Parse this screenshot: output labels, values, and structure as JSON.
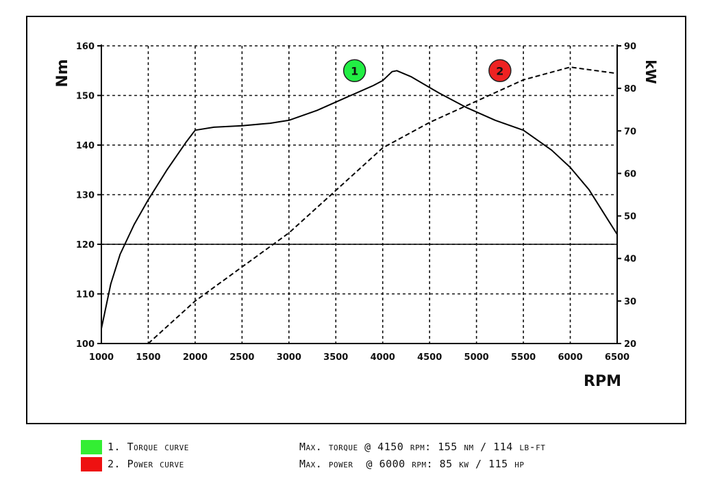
{
  "chart_data": {
    "type": "line",
    "xlabel": "RPM",
    "ylabel_left": "Nm",
    "ylabel_right": "kW",
    "xlim": [
      1000,
      6500
    ],
    "ylim_left": [
      100,
      160
    ],
    "ylim_right": [
      20,
      90
    ],
    "x_ticks": [
      "1000",
      "1500",
      "2000",
      "2500",
      "3000",
      "3500",
      "4000",
      "4500",
      "5000",
      "5500",
      "6000",
      "6500"
    ],
    "y_left_ticks": [
      "100",
      "110",
      "120",
      "130",
      "140",
      "150",
      "160"
    ],
    "y_right_ticks": [
      "20",
      "30",
      "40",
      "50",
      "60",
      "70",
      "80",
      "90"
    ],
    "grid": true,
    "series": [
      {
        "name": "1. Torque curve",
        "marker_label": "1",
        "axis": "left",
        "color": "#000000",
        "style": "solid",
        "x": [
          1000,
          1100,
          1200,
          1350,
          1500,
          1700,
          1900,
          2000,
          2200,
          2500,
          2800,
          3000,
          3300,
          3600,
          3900,
          4000,
          4100,
          4150,
          4300,
          4600,
          4900,
          5200,
          5500,
          5800,
          6000,
          6200,
          6400,
          6500
        ],
        "values": [
          103,
          112,
          118,
          124,
          129,
          135,
          140.5,
          143,
          143.6,
          143.9,
          144.4,
          145,
          147,
          149.5,
          152,
          153,
          154.8,
          155,
          153.8,
          150.5,
          147.5,
          145,
          143,
          139,
          135.5,
          131,
          125,
          122
        ]
      },
      {
        "name": "2. Power curve",
        "marker_label": "2",
        "axis": "right",
        "color": "#000000",
        "style": "dashed",
        "x": [
          1500,
          2000,
          2500,
          3000,
          3500,
          4000,
          4500,
          5000,
          5500,
          6000,
          6500
        ],
        "values": [
          20,
          30,
          38,
          46,
          56,
          66,
          72,
          77,
          82,
          85,
          83.5
        ]
      }
    ],
    "badges": [
      {
        "label": "1",
        "color": "#22ee44",
        "x": 3700,
        "y_left": 155
      },
      {
        "label": "2",
        "color": "#ee2222",
        "x": 5250,
        "y_left": 155
      }
    ],
    "reference_line_left": 120
  },
  "legend": {
    "items": [
      {
        "label": "1. Torque curve",
        "color": "#33ee33"
      },
      {
        "label": "2. Power curve",
        "color": "#ee1111"
      }
    ]
  },
  "info": {
    "torque": "Max. torque @ 4150 rpm: 155 nm / 114 lb-ft",
    "power": "Max. power  @ 6000 rpm: 85 kw / 115 hp"
  }
}
